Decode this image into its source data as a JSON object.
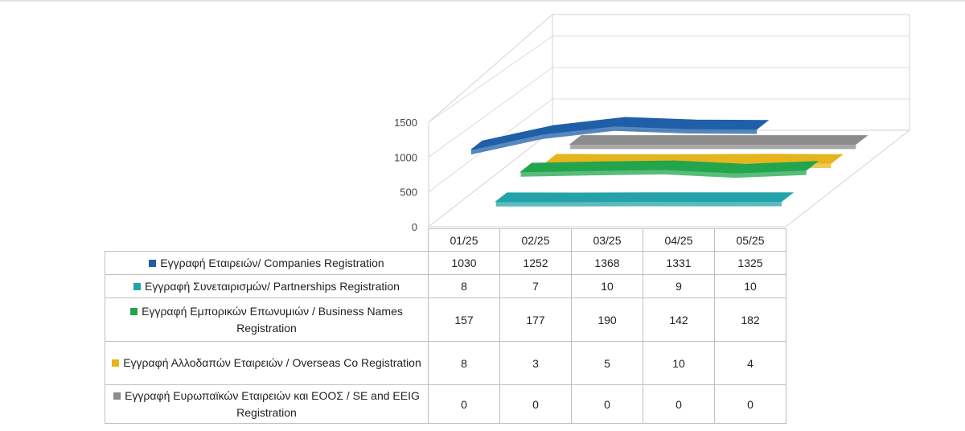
{
  "chart_data": {
    "type": "line",
    "style": "3d-ribbon",
    "categories": [
      "01/25",
      "02/25",
      "03/25",
      "04/25",
      "05/25"
    ],
    "ylim": [
      0,
      1500
    ],
    "yticks": [
      "0",
      "500",
      "1000",
      "1500"
    ],
    "grid": true,
    "legend": "table-below",
    "series": [
      {
        "name": "Εγγραφή Εταιρειών/ Companies Registration",
        "color": "#1f5fa8",
        "values": [
          1030,
          1252,
          1368,
          1331,
          1325
        ],
        "display": [
          "1030",
          "1252",
          "1368",
          "1331",
          "1325"
        ]
      },
      {
        "name": "Εγγραφή Συνεταιρισμών/ Partnerships Registration",
        "color": "#23a3a9",
        "values": [
          8,
          7,
          10,
          9,
          10
        ],
        "display": [
          "8",
          "7",
          "10",
          "9",
          "10"
        ]
      },
      {
        "name": "Εγγραφή Εμπορικών Επωνυμιών / Business Names Registration",
        "color": "#22a54d",
        "values": [
          157,
          177,
          190,
          142,
          182
        ],
        "display": [
          "157",
          "177",
          "190",
          "142",
          "182"
        ]
      },
      {
        "name": "Εγγραφή Αλλοδαπών Εταιρειών / Overseas Co Registration",
        "color": "#e6b51d",
        "values": [
          8,
          3,
          5,
          10,
          4
        ],
        "display": [
          "8",
          "3",
          "5",
          "10",
          "4"
        ]
      },
      {
        "name": "Εγγραφή Ευρωπαϊκών Εταιρειών και ΕΟΟΣ / SE and EEIG Registration",
        "color": "#8c8c8c",
        "values": [
          0,
          0,
          0,
          0,
          0
        ],
        "display": [
          "0",
          "0",
          "0",
          "0",
          "0"
        ]
      }
    ]
  }
}
